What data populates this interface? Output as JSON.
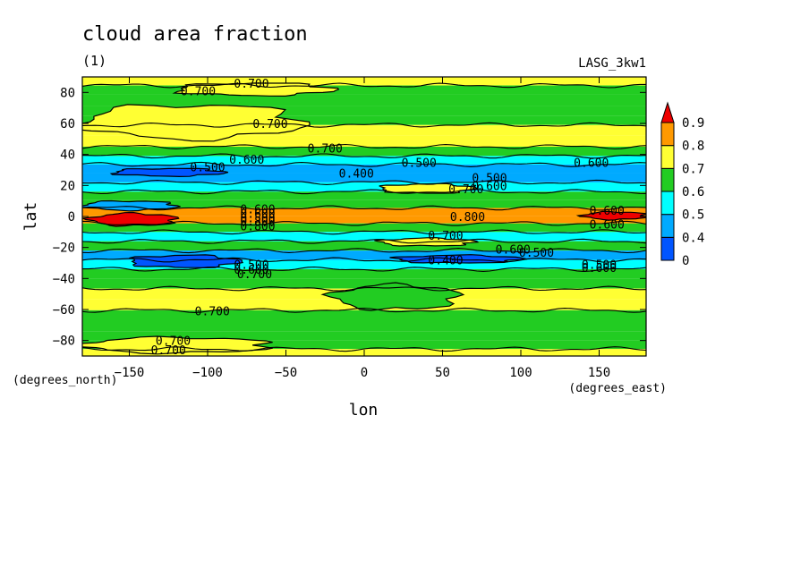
{
  "chart_data": {
    "type": "heatmap",
    "title": "cloud area fraction",
    "subtitle": "(1)",
    "model_label": "LASG_3kw1",
    "xlabel": "lon",
    "ylabel": "lat",
    "x_units": "(degrees_east)",
    "y_units": "(degrees_north)",
    "xlim": [
      -180,
      180
    ],
    "ylim": [
      -90,
      90
    ],
    "x_ticks": [
      -150,
      -100,
      -50,
      0,
      50,
      100,
      150
    ],
    "y_ticks": [
      -80,
      -60,
      -40,
      -20,
      0,
      20,
      40,
      60,
      80
    ],
    "colorbar": {
      "levels": [
        "0",
        "0.4",
        "0.5",
        "0.6",
        "0.7",
        "0.8",
        "0.9"
      ],
      "colors": [
        "#0055ff",
        "#00aaff",
        "#00ffff",
        "#22cc22",
        "#ffff33",
        "#ff9900"
      ],
      "over_color": "#ee0000",
      "extend": "max"
    },
    "lat_rows": [
      {
        "lat": 87,
        "value": 0.72
      },
      {
        "lat": 82,
        "value": 0.66
      },
      {
        "lat": 75,
        "value": 0.68
      },
      {
        "lat": 68,
        "value": 0.65
      },
      {
        "lat": 62,
        "value": 0.62
      },
      {
        "lat": 56,
        "value": 0.74
      },
      {
        "lat": 48,
        "value": 0.76
      },
      {
        "lat": 42,
        "value": 0.68
      },
      {
        "lat": 36,
        "value": 0.55
      },
      {
        "lat": 31,
        "value": 0.43
      },
      {
        "lat": 25,
        "value": 0.47
      },
      {
        "lat": 19,
        "value": 0.56
      },
      {
        "lat": 13,
        "value": 0.64
      },
      {
        "lat": 8,
        "value": 0.69
      },
      {
        "lat": 3,
        "value": 0.82
      },
      {
        "lat": -2,
        "value": 0.85
      },
      {
        "lat": -7,
        "value": 0.68
      },
      {
        "lat": -13,
        "value": 0.5
      },
      {
        "lat": -19,
        "value": 0.6
      },
      {
        "lat": -25,
        "value": 0.45
      },
      {
        "lat": -31,
        "value": 0.5
      },
      {
        "lat": -37,
        "value": 0.62
      },
      {
        "lat": -43,
        "value": 0.69
      },
      {
        "lat": -50,
        "value": 0.74
      },
      {
        "lat": -57,
        "value": 0.72
      },
      {
        "lat": -64,
        "value": 0.66
      },
      {
        "lat": -71,
        "value": 0.63
      },
      {
        "lat": -77,
        "value": 0.6
      },
      {
        "lat": -83,
        "value": 0.68
      },
      {
        "lat": -88,
        "value": 0.7
      }
    ],
    "features": [
      {
        "lon_range": [
          -180,
          -40
        ],
        "lat_range": [
          50,
          72
        ],
        "value": 0.72
      },
      {
        "lon_range": [
          -120,
          -20
        ],
        "lat_range": [
          78,
          86
        ],
        "value": 0.74
      },
      {
        "lon_range": [
          10,
          70
        ],
        "lat_range": [
          15,
          21
        ],
        "value": 0.75
      },
      {
        "lon_range": [
          10,
          70
        ],
        "lat_range": [
          -19,
          -14
        ],
        "value": 0.75
      },
      {
        "lon_range": [
          -175,
          -120
        ],
        "lat_range": [
          -6,
          2
        ],
        "value": 0.92
      },
      {
        "lon_range": [
          140,
          180
        ],
        "lat_range": [
          -2,
          3
        ],
        "value": 0.92
      },
      {
        "lon_range": [
          -180,
          -120
        ],
        "lat_range": [
          4,
          10
        ],
        "value": 0.45
      },
      {
        "lon_range": [
          -160,
          -90
        ],
        "lat_range": [
          26,
          31
        ],
        "value": 0.38
      },
      {
        "lon_range": [
          -150,
          -80
        ],
        "lat_range": [
          -33,
          -25
        ],
        "value": 0.38
      },
      {
        "lon_range": [
          20,
          100
        ],
        "lat_range": [
          -30,
          -25
        ],
        "value": 0.35
      },
      {
        "lon_range": [
          -20,
          60
        ],
        "lat_range": [
          -60,
          -44
        ],
        "value": 0.62
      },
      {
        "lon_range": [
          -180,
          -60
        ],
        "lat_range": [
          -88,
          -78
        ],
        "value": 0.73
      }
    ],
    "contour_labels": [
      {
        "text": "0.700",
        "lon": -72,
        "lat": 86
      },
      {
        "text": "0.700",
        "lon": -106,
        "lat": 81
      },
      {
        "text": "0.700",
        "lon": -60,
        "lat": 60
      },
      {
        "text": "0.700",
        "lon": -25,
        "lat": 44
      },
      {
        "text": "0.600",
        "lon": -75,
        "lat": 37
      },
      {
        "text": "0.500",
        "lon": -100,
        "lat": 32
      },
      {
        "text": "0.400",
        "lon": -5,
        "lat": 28
      },
      {
        "text": "0.500",
        "lon": 35,
        "lat": 35
      },
      {
        "text": "0.500",
        "lon": 80,
        "lat": 25
      },
      {
        "text": "0.700",
        "lon": 65,
        "lat": 18
      },
      {
        "text": "0.600",
        "lon": 80,
        "lat": 20
      },
      {
        "text": "0.600",
        "lon": 145,
        "lat": 35
      },
      {
        "text": "0.600",
        "lon": -68,
        "lat": 5
      },
      {
        "text": "0.600",
        "lon": -68,
        "lat": 2
      },
      {
        "text": "0.500",
        "lon": -68,
        "lat": -1
      },
      {
        "text": "0.800",
        "lon": -68,
        "lat": -3
      },
      {
        "text": "0.800",
        "lon": -68,
        "lat": -6
      },
      {
        "text": "0.800",
        "lon": 66,
        "lat": 0
      },
      {
        "text": "0.600",
        "lon": 155,
        "lat": 4
      },
      {
        "text": "0.600",
        "lon": 155,
        "lat": -5
      },
      {
        "text": "0.700",
        "lon": 52,
        "lat": -12
      },
      {
        "text": "0.600",
        "lon": 95,
        "lat": -21
      },
      {
        "text": "0.500",
        "lon": 110,
        "lat": -23
      },
      {
        "text": "0.400",
        "lon": 52,
        "lat": -28
      },
      {
        "text": "0.500",
        "lon": -72,
        "lat": -31
      },
      {
        "text": "0.600",
        "lon": -72,
        "lat": -34
      },
      {
        "text": "0.700",
        "lon": -70,
        "lat": -37
      },
      {
        "text": "0.500",
        "lon": 150,
        "lat": -31
      },
      {
        "text": "0.600",
        "lon": 150,
        "lat": -33
      },
      {
        "text": "0.700",
        "lon": -97,
        "lat": -61
      },
      {
        "text": "0.700",
        "lon": -122,
        "lat": -80
      },
      {
        "text": "0.700",
        "lon": -125,
        "lat": -86
      }
    ]
  }
}
